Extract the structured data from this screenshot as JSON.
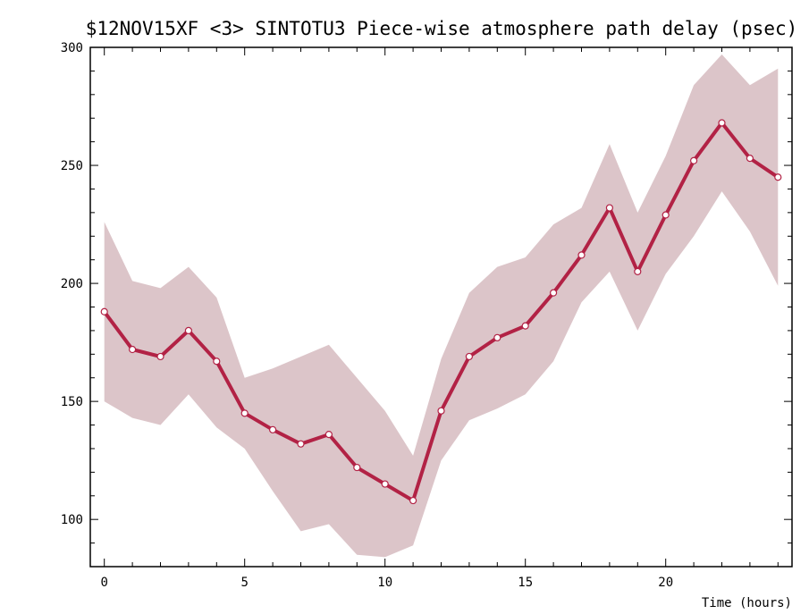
{
  "chart_data": {
    "type": "line",
    "title": "$12NOV15XF <3>  SINTOTU3  Piece-wise atmosphere path delay (psec)",
    "xlabel": "Time (hours)",
    "ylabel": "",
    "xlim": [
      -0.5,
      24.5
    ],
    "ylim": [
      80,
      300
    ],
    "xticks": [
      0,
      5,
      10,
      15,
      20
    ],
    "yticks": [
      100,
      150,
      200,
      250,
      300
    ],
    "grid": false,
    "legend": "none",
    "colors": {
      "line": "#b22245",
      "band": "#dcc5c9",
      "marker_fill": "#ffffff"
    },
    "series": [
      {
        "x": [
          0,
          1,
          2,
          3,
          4,
          5,
          6,
          7,
          8,
          9,
          10,
          11,
          12,
          13,
          14,
          15,
          16,
          17,
          18,
          19,
          20,
          21,
          22,
          23,
          24
        ],
        "values": [
          188,
          172,
          169,
          180,
          167,
          145,
          138,
          132,
          136,
          122,
          115,
          108,
          146,
          169,
          177,
          182,
          196,
          212,
          232,
          205,
          229,
          252,
          268,
          253,
          245
        ],
        "upper": [
          226,
          201,
          198,
          207,
          194,
          160,
          164,
          169,
          174,
          160,
          146,
          127,
          168,
          196,
          207,
          211,
          225,
          232,
          259,
          230,
          254,
          284,
          297,
          284,
          291
        ],
        "lower": [
          150,
          143,
          140,
          153,
          139,
          130,
          112,
          95,
          98,
          85,
          84,
          89,
          125,
          142,
          147,
          153,
          167,
          192,
          205,
          180,
          204,
          220,
          239,
          222,
          199
        ]
      }
    ]
  }
}
